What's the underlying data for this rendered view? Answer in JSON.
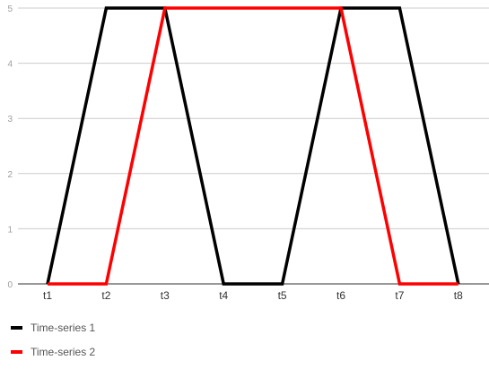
{
  "chart_data": {
    "type": "line",
    "categories": [
      "t1",
      "t2",
      "t3",
      "t4",
      "t5",
      "t6",
      "t7",
      "t8"
    ],
    "series": [
      {
        "name": "Time-series 1",
        "color": "#000000",
        "values": [
          0,
          5,
          5,
          0,
          0,
          5,
          5,
          0
        ]
      },
      {
        "name": "Time-series 2",
        "color": "#ff0000",
        "values": [
          0,
          0,
          5,
          5,
          5,
          5,
          0,
          0
        ]
      }
    ],
    "yticks": [
      0,
      1,
      2,
      3,
      4,
      5
    ],
    "ylim": [
      0,
      5
    ],
    "grid": true,
    "legend_position": "bottom-left"
  }
}
